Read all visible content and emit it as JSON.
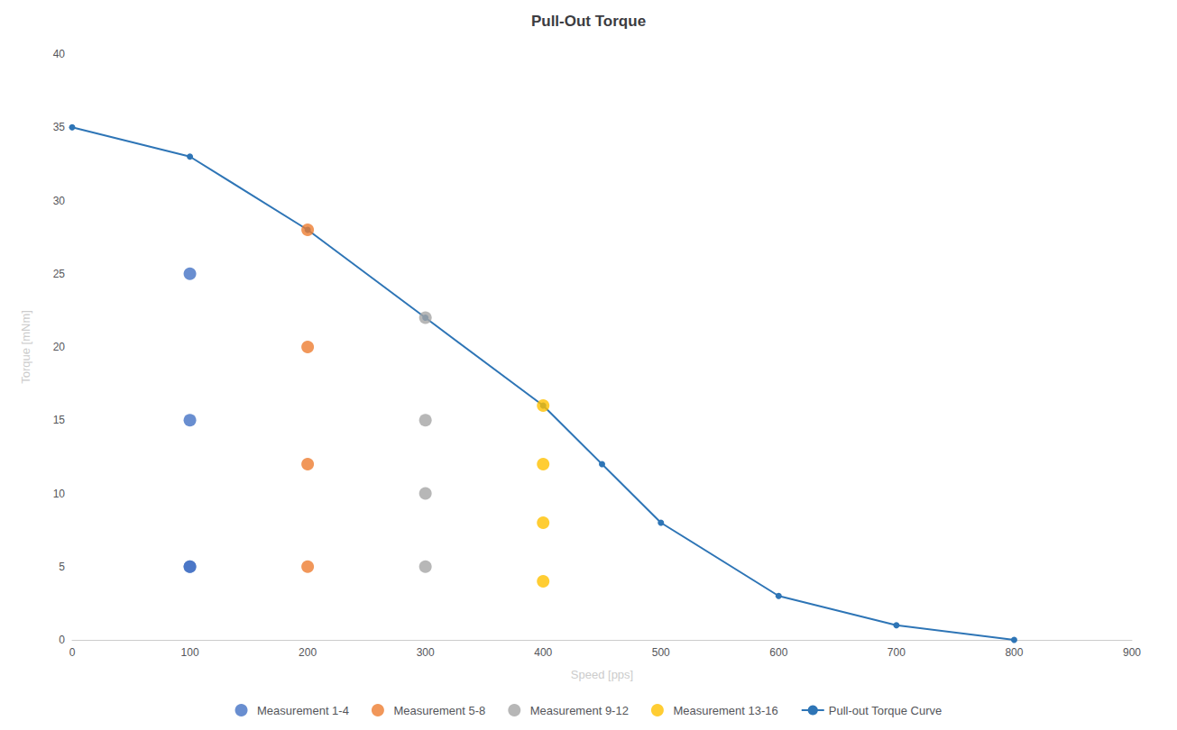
{
  "chart_data": {
    "type": "scatter",
    "title": "Pull-Out Torque",
    "xlabel": "Speed [pps]",
    "ylabel": "Torque [mNm]",
    "xlim": [
      0,
      900
    ],
    "ylim": [
      0,
      40
    ],
    "xticks": [
      0,
      100,
      200,
      300,
      400,
      500,
      600,
      700,
      800,
      900
    ],
    "yticks": [
      0,
      5,
      10,
      15,
      20,
      25,
      30,
      35,
      40
    ],
    "grid": false,
    "legend": "bottom",
    "series": [
      {
        "name": "Measurement 1-4",
        "type": "scatter",
        "color": "#4472C4",
        "marker": "circle",
        "x": [
          100,
          100,
          100,
          100
        ],
        "values": [
          25,
          15,
          5,
          5
        ]
      },
      {
        "name": "Measurement 5-8",
        "type": "scatter",
        "color": "#ED7D31",
        "marker": "circle",
        "x": [
          200,
          200,
          200,
          200
        ],
        "values": [
          28,
          20,
          12,
          5
        ]
      },
      {
        "name": "Measurement 9-12",
        "type": "scatter",
        "color": "#A5A5A5",
        "marker": "circle",
        "x": [
          300,
          300,
          300,
          300
        ],
        "values": [
          22,
          15,
          10,
          5
        ]
      },
      {
        "name": "Measurement 13-16",
        "type": "scatter",
        "color": "#FFC000",
        "marker": "circle",
        "x": [
          400,
          400,
          400,
          400
        ],
        "values": [
          16,
          12,
          8,
          4
        ]
      },
      {
        "name": "Pull-out Torque Curve",
        "type": "line",
        "color": "#2E75B6",
        "marker": "circle",
        "x": [
          0,
          100,
          200,
          300,
          400,
          450,
          500,
          600,
          700,
          800
        ],
        "values": [
          35,
          33,
          28,
          22,
          16,
          12,
          8,
          3,
          1,
          0
        ]
      }
    ]
  }
}
